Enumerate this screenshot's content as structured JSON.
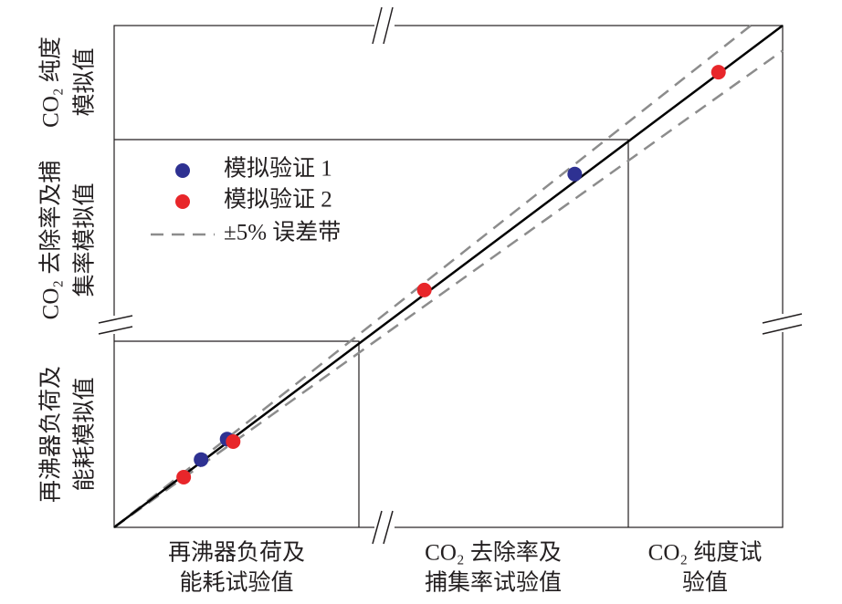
{
  "chart_data": {
    "type": "scatter",
    "x_categories": [
      [
        "再沸器负荷及",
        "能耗试验值"
      ],
      [
        "CO₂ 去除率及",
        "捕集率试验值"
      ],
      [
        "CO₂ 纯度试",
        "验值"
      ]
    ],
    "y_categories": [
      [
        "再沸器负荷及",
        "能耗模拟值"
      ],
      [
        "CO₂ 去除率及捕",
        "集率模拟值"
      ],
      [
        "CO₂ 纯度",
        "模拟值"
      ]
    ],
    "xlim": [
      0,
      1
    ],
    "ylim": [
      0,
      1
    ],
    "series": [
      {
        "name": "模拟验证 1",
        "color": "#2e3192",
        "x": [
          0.689,
          0.13,
          0.169
        ],
        "values": [
          0.704,
          0.135,
          0.176
        ]
      },
      {
        "name": "模拟验证 2",
        "color": "#e8262a",
        "x": [
          0.904,
          0.464,
          0.178,
          0.104
        ],
        "values": [
          0.907,
          0.473,
          0.171,
          0.1
        ]
      }
    ],
    "error_band_pct": 5,
    "error_band_label": "±5% 误差带",
    "error_band_color": "#8c8c8c"
  }
}
